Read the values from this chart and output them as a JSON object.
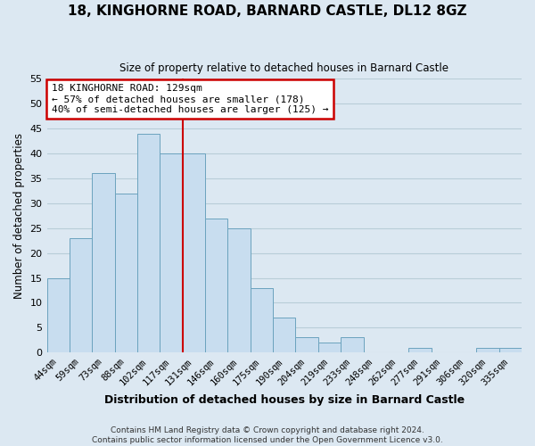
{
  "title": "18, KINGHORNE ROAD, BARNARD CASTLE, DL12 8GZ",
  "subtitle": "Size of property relative to detached houses in Barnard Castle",
  "xlabel": "Distribution of detached houses by size in Barnard Castle",
  "ylabel": "Number of detached properties",
  "footer_lines": [
    "Contains HM Land Registry data © Crown copyright and database right 2024.",
    "Contains public sector information licensed under the Open Government Licence v3.0."
  ],
  "bin_labels": [
    "44sqm",
    "59sqm",
    "73sqm",
    "88sqm",
    "102sqm",
    "117sqm",
    "131sqm",
    "146sqm",
    "160sqm",
    "175sqm",
    "190sqm",
    "204sqm",
    "219sqm",
    "233sqm",
    "248sqm",
    "262sqm",
    "277sqm",
    "291sqm",
    "306sqm",
    "320sqm",
    "335sqm"
  ],
  "bar_values": [
    15,
    23,
    36,
    32,
    44,
    40,
    40,
    27,
    25,
    13,
    7,
    3,
    2,
    3,
    0,
    0,
    1,
    0,
    0,
    1,
    1
  ],
  "bar_color": "#c8ddef",
  "bar_edge_color": "#6ba3be",
  "vline_x_index": 6,
  "vline_color": "#cc0000",
  "ylim": [
    0,
    55
  ],
  "yticks": [
    0,
    5,
    10,
    15,
    20,
    25,
    30,
    35,
    40,
    45,
    50,
    55
  ],
  "annotation_title": "18 KINGHORNE ROAD: 129sqm",
  "annotation_line1": "← 57% of detached houses are smaller (178)",
  "annotation_line2": "40% of semi-detached houses are larger (125) →",
  "annotation_box_color": "white",
  "annotation_box_edge_color": "#cc0000",
  "bg_color": "#dce8f2",
  "plot_bg_color": "#dce8f2",
  "grid_color": "#b8cdd8"
}
